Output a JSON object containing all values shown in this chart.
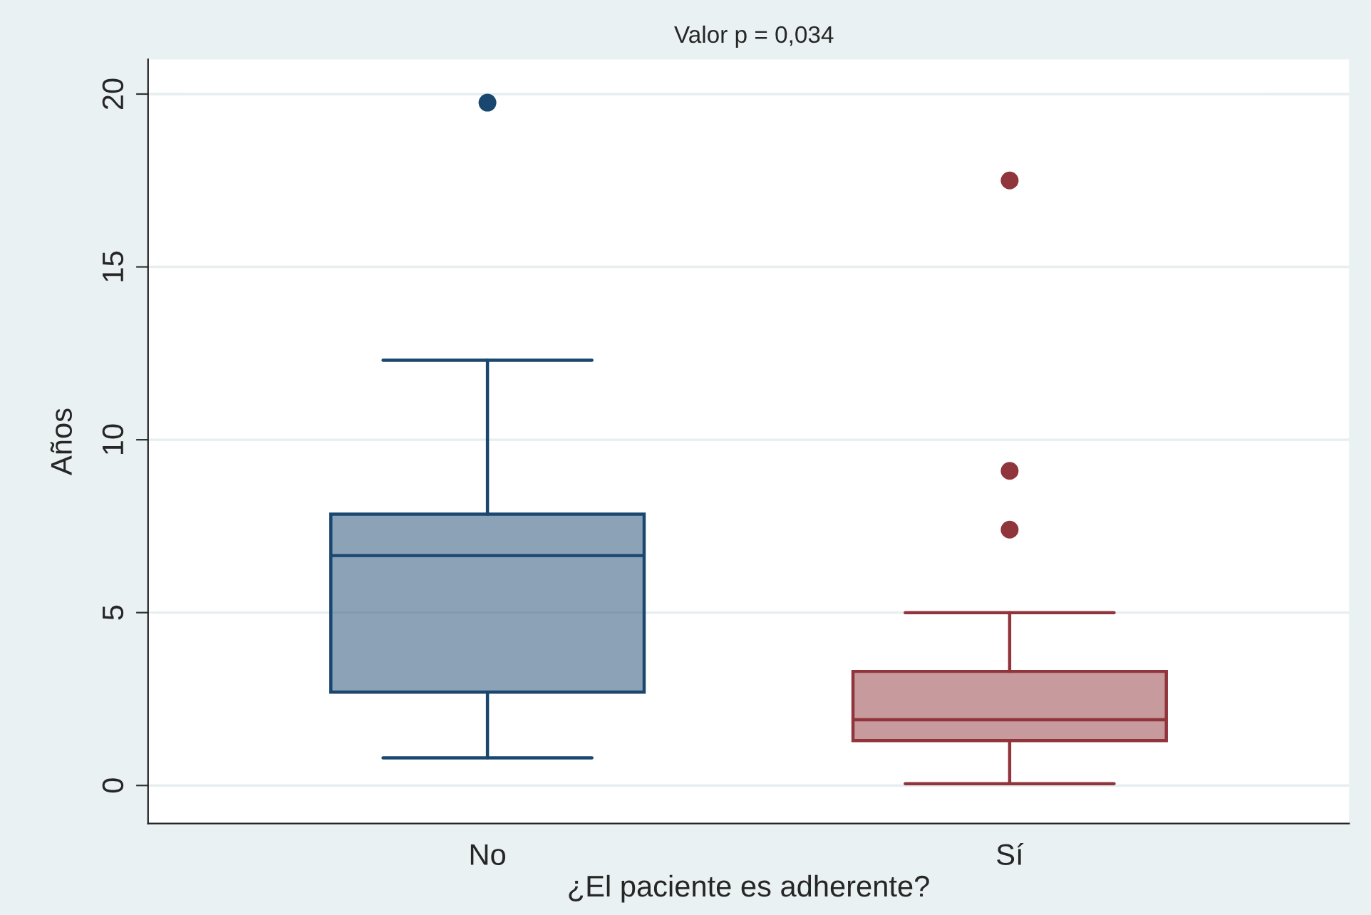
{
  "chart_data": {
    "type": "box",
    "title": "Valor p = 0,034",
    "xlabel": "¿El paciente es adherente?",
    "ylabel": "Años",
    "categories": [
      "No",
      "Sí"
    ],
    "colors": [
      "#1a476f",
      "#90353b"
    ],
    "boxes": [
      {
        "low": 0.8,
        "q1": 2.7,
        "median": 6.65,
        "q3": 7.85,
        "high": 12.3,
        "outliers": [
          19.75
        ]
      },
      {
        "low": 0.05,
        "q1": 1.3,
        "median": 1.9,
        "q3": 3.3,
        "high": 5.0,
        "outliers": [
          7.4,
          9.1,
          17.5
        ]
      }
    ],
    "ylim": [
      -1.1,
      21
    ],
    "yticks": [
      0,
      5,
      10,
      15,
      20
    ],
    "grid": "y",
    "legend": false
  }
}
